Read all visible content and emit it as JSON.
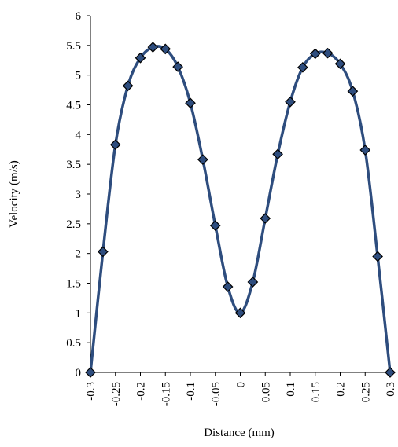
{
  "chart_data": {
    "type": "line",
    "title": "",
    "xlabel": "Distance (mm)",
    "ylabel": "Velocity (m/s)",
    "xlim": [
      -0.3,
      0.3
    ],
    "ylim": [
      0,
      6
    ],
    "xticks": [
      -0.3,
      -0.25,
      -0.2,
      -0.15,
      -0.1,
      -0.05,
      0,
      0.05,
      0.1,
      0.15,
      0.2,
      0.25,
      0.3
    ],
    "xtick_labels": [
      "-0.3",
      "-0.25",
      "-0.2",
      "-0.15",
      "-0.1",
      "-0.05",
      "0",
      "0.05",
      "0.1",
      "0.15",
      "0.2",
      "0.25",
      "0.3"
    ],
    "yticks": [
      0,
      0.5,
      1,
      1.5,
      2,
      2.5,
      3,
      3.5,
      4,
      4.5,
      5,
      5.5,
      6
    ],
    "ytick_labels": [
      "0",
      "0.5",
      "1",
      "1.5",
      "2",
      "2.5",
      "3",
      "3.5",
      "4",
      "4.5",
      "5",
      "5.5",
      "6"
    ],
    "grid": false,
    "legend": "none",
    "line_color": "#2e4d7e",
    "marker": "diamond",
    "series": [
      {
        "x": [
          -0.3,
          -0.275,
          -0.25,
          -0.225,
          -0.2,
          -0.175,
          -0.15,
          -0.125,
          -0.1,
          -0.075,
          -0.05,
          -0.025,
          0,
          0.025,
          0.05,
          0.075,
          0.1,
          0.125,
          0.15,
          0.175,
          0.2,
          0.225,
          0.25,
          0.275,
          0.3
        ],
        "y": [
          0,
          2.03,
          3.83,
          4.82,
          5.29,
          5.47,
          5.44,
          5.14,
          4.53,
          3.58,
          2.47,
          1.44,
          1.0,
          1.52,
          2.59,
          3.67,
          4.55,
          5.13,
          5.36,
          5.37,
          5.19,
          4.73,
          3.74,
          1.95,
          0
        ]
      }
    ]
  }
}
